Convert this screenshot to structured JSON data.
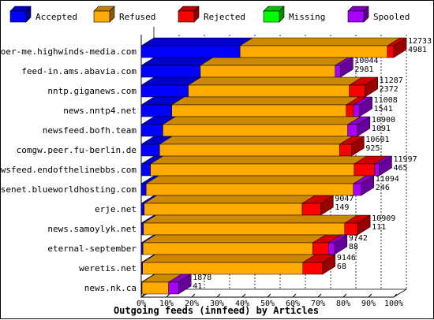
{
  "chart_data": {
    "type": "bar",
    "orientation": "horizontal",
    "stacked": true,
    "title": "Outgoing feeds (innfeed) by Articles",
    "categories": [
      "voer-me.highwinds-media.com",
      "feed-in.ams.abavia.com",
      "nntp.giganews.com",
      "news.nntp4.net",
      "newsfeed.bofh.team",
      "comgw.peer.fu-berlin.de",
      "newsfeed.endofthelinebbs.com",
      "usenet.blueworldhosting.com",
      "erje.net",
      "news.samoylyk.net",
      "eternal-september",
      "weretis.net",
      "news.nk.ca"
    ],
    "totals": [
      12733,
      10044,
      11287,
      11008,
      10900,
      10601,
      11997,
      11094,
      9047,
      10909,
      9742,
      9146,
      1878
    ],
    "accepted_counts": [
      4981,
      2981,
      2372,
      1541,
      1091,
      925,
      465,
      246,
      149,
      111,
      88,
      68,
      41
    ],
    "series": [
      {
        "name": "Accepted",
        "color": "#0000ff",
        "values": [
          4981,
          2981,
          2372,
          1541,
          1091,
          925,
          465,
          246,
          149,
          111,
          88,
          68,
          41
        ]
      },
      {
        "name": "Refused",
        "color": "#ffaa00",
        "values": [
          7432,
          6797,
          8120,
          8794,
          9320,
          9076,
          10272,
          10448,
          7968,
          10148,
          8560,
          8080,
          1337
        ]
      },
      {
        "name": "Rejected",
        "color": "#ff0000",
        "values": [
          320,
          0,
          795,
          373,
          0,
          600,
          1040,
          0,
          930,
          650,
          800,
          998,
          0
        ]
      },
      {
        "name": "Missing",
        "color": "#00ff00",
        "values": [
          0,
          0,
          0,
          0,
          0,
          0,
          0,
          0,
          0,
          0,
          0,
          0,
          0
        ]
      },
      {
        "name": "Spooled",
        "color": "#aa00ff",
        "values": [
          0,
          266,
          0,
          300,
          489,
          0,
          220,
          400,
          0,
          0,
          294,
          0,
          500
        ]
      }
    ],
    "xlim": [
      0,
      12733
    ],
    "x_ticks": [
      "0%",
      "10%",
      "20%",
      "30%",
      "40%",
      "50%",
      "60%",
      "70%",
      "80%",
      "90%",
      "100%"
    ],
    "x_tick_fractions": [
      0,
      0.1,
      0.2,
      0.3,
      0.4,
      0.5,
      0.6,
      0.7,
      0.8,
      0.9,
      1.0
    ],
    "legend_position": "top",
    "grid": "vertical dashed lines at ticks"
  }
}
